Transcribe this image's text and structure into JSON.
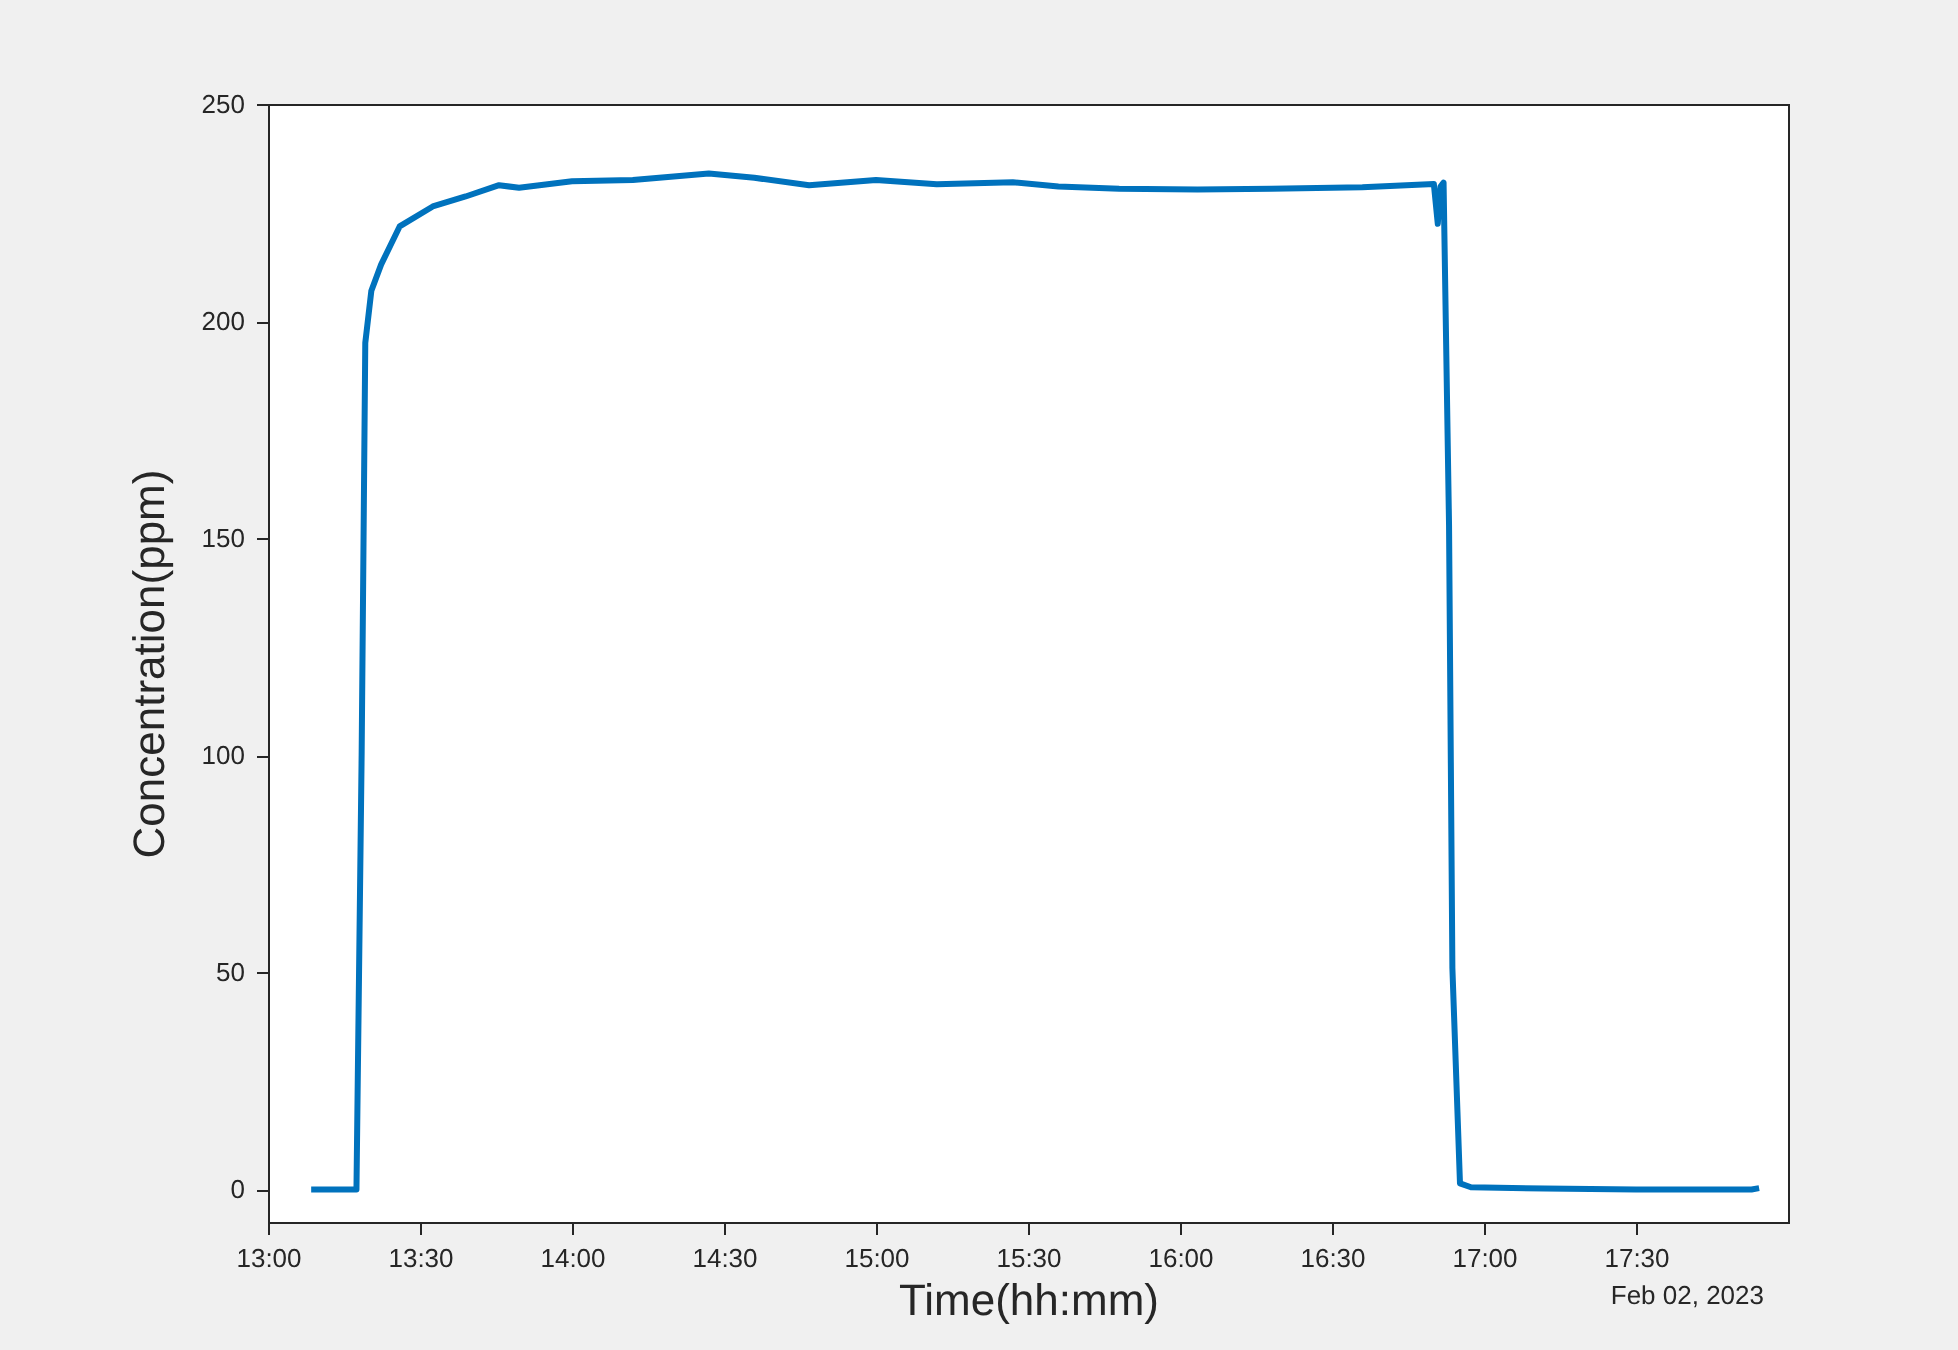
{
  "chart_data": {
    "type": "line",
    "xlabel": "Time(hh:mm)",
    "ylabel": "Concentration(ppm)",
    "annotations": [
      "Feb 02, 2023"
    ],
    "x": [
      13.142,
      13.291,
      13.308,
      13.32,
      13.34,
      13.372,
      13.433,
      13.542,
      13.65,
      13.76,
      13.826,
      14.0,
      14.2,
      14.45,
      14.6,
      14.78,
      15.0,
      15.2,
      15.45,
      15.6,
      15.8,
      16.058,
      16.3,
      16.6,
      16.835,
      16.848,
      16.857,
      16.867,
      16.885,
      16.896,
      16.921,
      16.957,
      17.2,
      17.5,
      17.88,
      17.905
    ],
    "series": [
      {
        "color": "#0072bd",
        "values": [
          0,
          0,
          100,
          195,
          207,
          213,
          221.8,
          226.4,
          228.7,
          231.3,
          230.7,
          232.2,
          232.5,
          234,
          233,
          231.3,
          232.5,
          231.5,
          232,
          231,
          230.5,
          230.3,
          230.5,
          230.8,
          231.6,
          222.4,
          231,
          231.9,
          153,
          51,
          1.4,
          0.5,
          0.2,
          0,
          0,
          0.3
        ]
      }
    ],
    "xlim": [
      13,
      18
    ],
    "xticks": [
      {
        "value": 13,
        "label": "13:00"
      },
      {
        "value": 13.5,
        "label": "13:30"
      },
      {
        "value": 14,
        "label": "14:00"
      },
      {
        "value": 14.5,
        "label": "14:30"
      },
      {
        "value": 15,
        "label": "15:00"
      },
      {
        "value": 15.5,
        "label": "15:30"
      },
      {
        "value": 16,
        "label": "16:00"
      },
      {
        "value": 16.5,
        "label": "16:30"
      },
      {
        "value": 17,
        "label": "17:00"
      },
      {
        "value": 17.5,
        "label": "17:30"
      }
    ],
    "ylim": [
      -7.5,
      250
    ],
    "yticks": [
      0,
      50,
      100,
      150,
      200,
      250
    ],
    "grid": false,
    "marker": "none",
    "line_style": "solid"
  }
}
